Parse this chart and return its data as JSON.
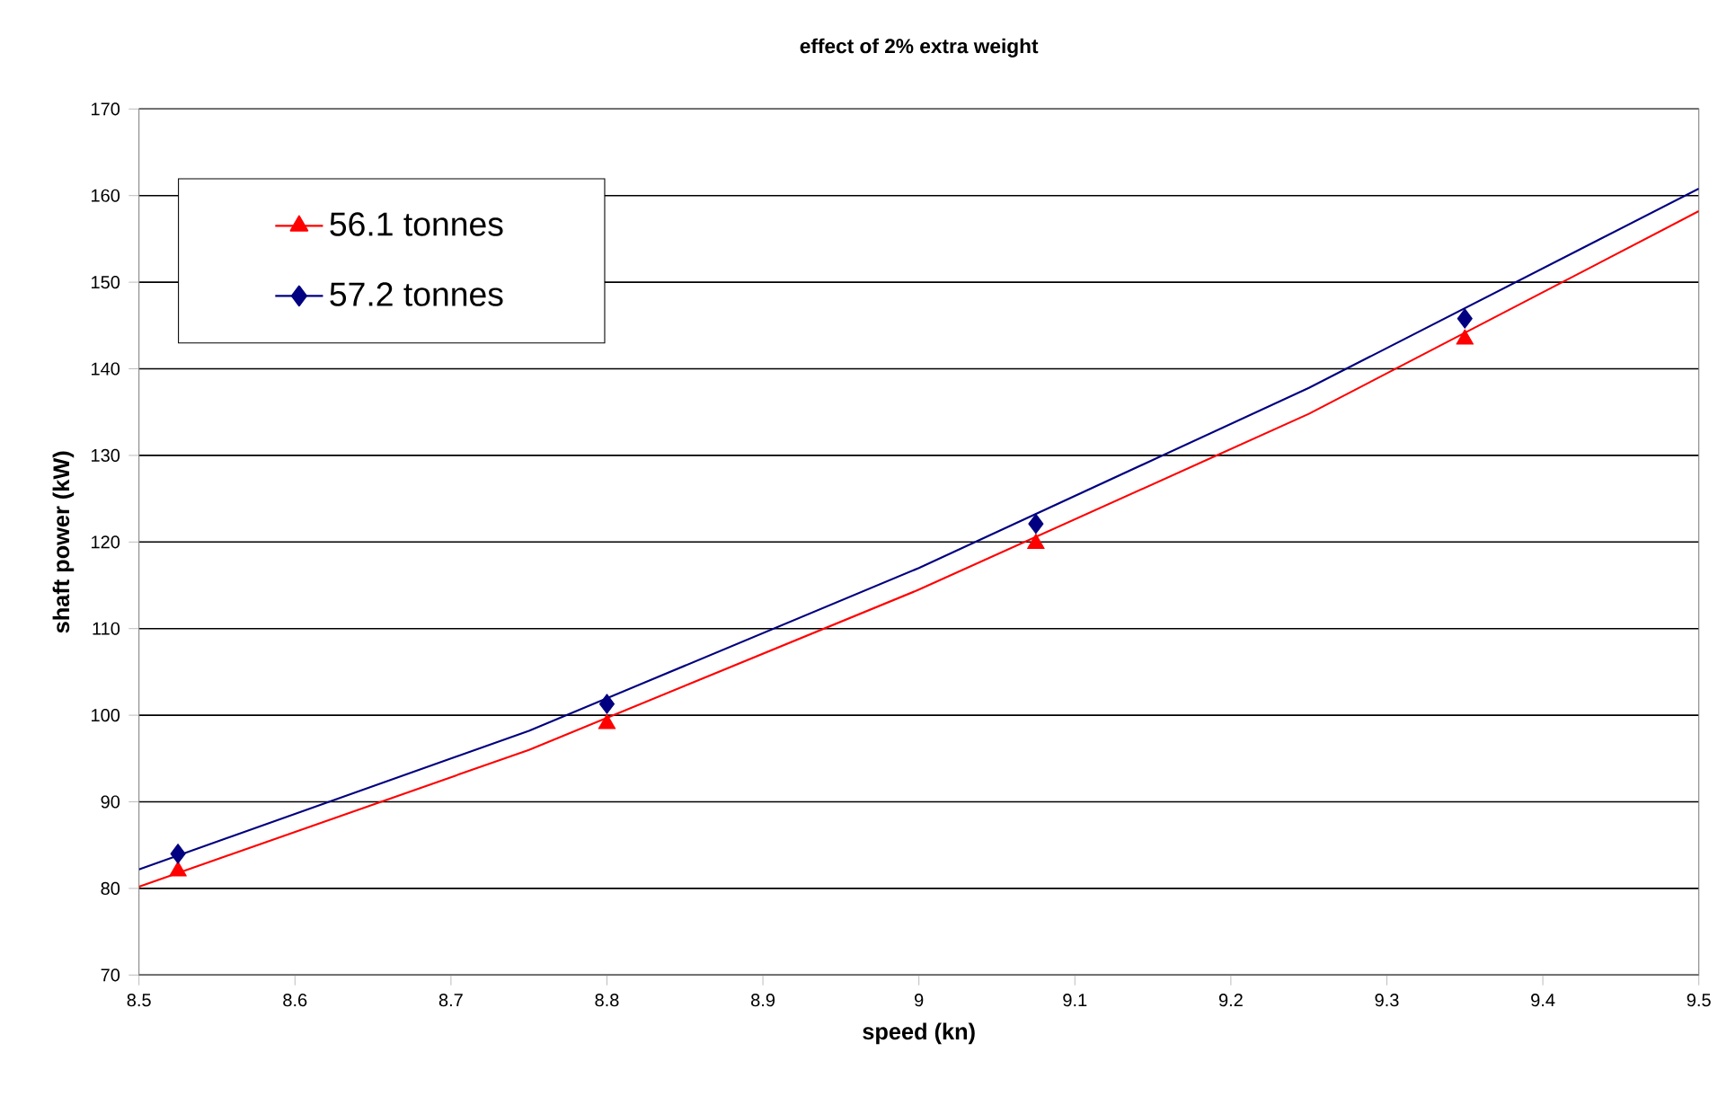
{
  "chart_data": {
    "type": "line",
    "title": "effect of 2% extra weight",
    "xlabel": "speed (kn)",
    "ylabel": "shaft power (kW)",
    "xlim": [
      8.5,
      9.5
    ],
    "xticks": [
      8.5,
      8.6,
      8.7,
      8.8,
      8.9,
      9,
      9.1,
      9.2,
      9.3,
      9.4,
      9.5
    ],
    "ylim": [
      70,
      170
    ],
    "yticks": [
      70,
      80,
      90,
      100,
      110,
      120,
      130,
      140,
      150,
      160,
      170
    ],
    "grid": "y",
    "legend": "top left",
    "series": [
      {
        "name": "56.1 tonnes",
        "type": "scatter",
        "color": "#ff0000",
        "marker": "triangle",
        "x": [
          8.525,
          8.8,
          9.075,
          9.35
        ],
        "values": [
          82,
          99,
          119.8,
          143.4
        ]
      },
      {
        "name": "57.2 tonnes",
        "type": "scatter",
        "color": "#000080",
        "marker": "diamond",
        "x": [
          8.525,
          8.8,
          9.075,
          9.35
        ],
        "values": [
          84,
          101.3,
          122.1,
          145.8
        ]
      },
      {
        "color": "#ff0000",
        "marker": "none",
        "x": [
          8.5,
          8.75,
          9.0,
          9.25,
          9.5
        ],
        "values": [
          80.2,
          96,
          114.5,
          134.8,
          158.2
        ]
      },
      {
        "color": "#000080",
        "marker": "none",
        "x": [
          8.5,
          8.75,
          9.0,
          9.25,
          9.5
        ],
        "values": [
          82.2,
          98.2,
          117,
          137.8,
          160.8
        ]
      }
    ]
  }
}
